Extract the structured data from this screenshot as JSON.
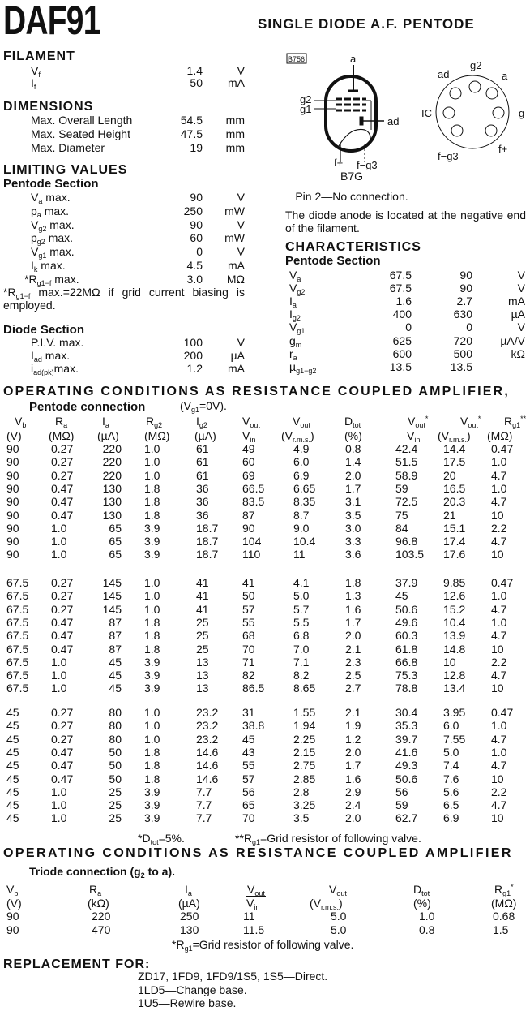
{
  "header": {
    "tube": "DAF91",
    "description": "SINGLE DIODE A.F. PENTODE"
  },
  "filament": {
    "title": "FILAMENT",
    "rows": [
      {
        "sym": "V",
        "sub": "f",
        "value": "1.4",
        "unit": "V"
      },
      {
        "sym": "I",
        "sub": "f",
        "value": "50",
        "unit": "mA"
      }
    ]
  },
  "dimensions": {
    "title": "DIMENSIONS",
    "rows": [
      {
        "text": "Max. Overall Length",
        "value": "54.5",
        "unit": "mm"
      },
      {
        "text": "Max. Seated Height",
        "value": "47.5",
        "unit": "mm"
      },
      {
        "text": "Max. Diameter",
        "value": "19",
        "unit": "mm"
      }
    ]
  },
  "limiting": {
    "title": "LIMITING VALUES",
    "pentode_title": "Pentode Section",
    "pentode_rows": [
      {
        "sym": "V",
        "sub": "a",
        "text": " max.",
        "value": "90",
        "unit": "V"
      },
      {
        "sym": "p",
        "sub": "a",
        "text": " max.",
        "value": "250",
        "unit": "mW"
      },
      {
        "sym": "V",
        "sub": "g2",
        "text": " max.",
        "value": "90",
        "unit": "V"
      },
      {
        "sym": "p",
        "sub": "g2",
        "text": " max.",
        "value": "60",
        "unit": "mW"
      },
      {
        "sym": "V",
        "sub": "g1",
        "text": " max.",
        "value": "0",
        "unit": "V"
      },
      {
        "sym": "I",
        "sub": "k",
        "text": " max.",
        "value": "4.5",
        "unit": "mA"
      },
      {
        "prefix": "*",
        "sym": "R",
        "sub": "g1−f",
        "text": " max.",
        "value": "3.0",
        "unit": "MΩ"
      }
    ],
    "footnote": {
      "prefix": "*R",
      "sub": "g1−f",
      "text": " max.=22MΩ if grid current biasing is employed."
    },
    "diode_title": "Diode Section",
    "diode_rows": [
      {
        "text": "P.I.V. max.",
        "value": "100",
        "unit": "V"
      },
      {
        "sym": "I",
        "sub": "ad",
        "text": " max.",
        "value": "200",
        "unit": "µA"
      },
      {
        "sym": "i",
        "sub": "ad(pk)",
        "text": "max.",
        "value": "1.2",
        "unit": "mA"
      }
    ]
  },
  "diagram": {
    "ref": "B756",
    "tube_labels": {
      "anode": "a",
      "g2": "g2",
      "g1": "g1",
      "diode_anode": "ad",
      "f_plus": "f+",
      "f_minus": "f−g3"
    },
    "socket_labels": {
      "top": "g2",
      "top_left": "ad",
      "top_right": "a",
      "left": "IC",
      "right": "g",
      "bottom_left": "f−g3",
      "bottom_right": "f+"
    },
    "base": "B7G",
    "pin_note": "Pin 2—No connection.",
    "diode_note": "The diode anode is located at the negative end of the filament."
  },
  "characteristics": {
    "title": "CHARACTERISTICS",
    "section": "Pentode Section",
    "rows": [
      {
        "sym": "V",
        "sub": "a",
        "v1": "67.5",
        "v2": "90",
        "unit": "V"
      },
      {
        "sym": "V",
        "sub": "g2",
        "v1": "67.5",
        "v2": "90",
        "unit": "V"
      },
      {
        "sym": "I",
        "sub": "a",
        "v1": "1.6",
        "v2": "2.7",
        "unit": "mA"
      },
      {
        "sym": "I",
        "sub": "g2",
        "v1": "400",
        "v2": "630",
        "unit": "µA"
      },
      {
        "sym": "V",
        "sub": "g1",
        "v1": "0",
        "v2": "0",
        "unit": "V"
      },
      {
        "sym": "g",
        "sub": "m",
        "v1": "625",
        "v2": "720",
        "unit": "µA/V"
      },
      {
        "sym": "r",
        "sub": "a",
        "v1": "600",
        "v2": "500",
        "unit": "kΩ"
      },
      {
        "sym": "µ",
        "sub": "g1−g2",
        "v1": "13.5",
        "v2": "13.5",
        "unit": ""
      }
    ]
  },
  "pentode_table": {
    "title": "OPERATING CONDITIONS AS RESISTANCE COUPLED AMPLIFIER,",
    "subtitle": "Pentode connection",
    "condition": {
      "sym": "(V",
      "sub": "g1",
      "text": "=0V)."
    },
    "headers": [
      {
        "sym": "V",
        "sub": "b",
        "unit": "(V)"
      },
      {
        "sym": "R",
        "sub": "a",
        "unit": "(MΩ)"
      },
      {
        "sym": "I",
        "sub": "a",
        "unit": "(µA)"
      },
      {
        "sym": "R",
        "sub": "g2",
        "unit": "(MΩ)"
      },
      {
        "sym": "I",
        "sub": "g2",
        "unit": "(µA)"
      },
      {
        "sym": "V",
        "sub": "out",
        "den_sym": "V",
        "den_sub": "in"
      },
      {
        "sym": "V",
        "sub": "out",
        "unit": "(V",
        "unit_sub": "r.m.s.",
        "unit_end": ")"
      },
      {
        "sym": "D",
        "sub": "tot",
        "unit": "(%)"
      },
      {
        "sym": "V",
        "sub": "out",
        "sup": "*",
        "den_sym": "V",
        "den_sub": "in"
      },
      {
        "sym": "V",
        "sub": "out",
        "sup": "*",
        "unit": "(V",
        "unit_sub": "r.m.s.",
        "unit_end": ")"
      },
      {
        "sym": "R",
        "sub": "g1",
        "sup": "**",
        "unit": "(MΩ)"
      }
    ],
    "groups": [
      [
        [
          "90",
          "0.27",
          "220",
          "1.0",
          "61",
          "49",
          "4.9",
          "0.8",
          "42.4",
          "14.4",
          "0.47"
        ],
        [
          "90",
          "0.27",
          "220",
          "1.0",
          "61",
          "60",
          "6.0",
          "1.4",
          "51.5",
          "17.5",
          "1.0"
        ],
        [
          "90",
          "0.27",
          "220",
          "1.0",
          "61",
          "69",
          "6.9",
          "2.0",
          "58.9",
          "20",
          "4.7"
        ],
        [
          "90",
          "0.47",
          "130",
          "1.8",
          "36",
          "66.5",
          "6.65",
          "1.7",
          "59",
          "16.5",
          "1.0"
        ],
        [
          "90",
          "0.47",
          "130",
          "1.8",
          "36",
          "83.5",
          "8.35",
          "3.1",
          "72.5",
          "20.3",
          "4.7"
        ],
        [
          "90",
          "0.47",
          "130",
          "1.8",
          "36",
          "87",
          "8.7",
          "3.5",
          "75",
          "21",
          "10"
        ],
        [
          "90",
          "1.0",
          "65",
          "3.9",
          "18.7",
          "90",
          "9.0",
          "3.0",
          "84",
          "15.1",
          "2.2"
        ],
        [
          "90",
          "1.0",
          "65",
          "3.9",
          "18.7",
          "104",
          "10.4",
          "3.3",
          "96.8",
          "17.4",
          "4.7"
        ],
        [
          "90",
          "1.0",
          "65",
          "3.9",
          "18.7",
          "110",
          "11",
          "3.6",
          "103.5",
          "17.6",
          "10"
        ]
      ],
      [
        [
          "67.5",
          "0.27",
          "145",
          "1.0",
          "41",
          "41",
          "4.1",
          "1.8",
          "37.9",
          "9.85",
          "0.47"
        ],
        [
          "67.5",
          "0.27",
          "145",
          "1.0",
          "41",
          "50",
          "5.0",
          "1.3",
          "45",
          "12.6",
          "1.0"
        ],
        [
          "67.5",
          "0.27",
          "145",
          "1.0",
          "41",
          "57",
          "5.7",
          "1.6",
          "50.6",
          "15.2",
          "4.7"
        ],
        [
          "67.5",
          "0.47",
          "87",
          "1.8",
          "25",
          "55",
          "5.5",
          "1.7",
          "49.6",
          "10.4",
          "1.0"
        ],
        [
          "67.5",
          "0.47",
          "87",
          "1.8",
          "25",
          "68",
          "6.8",
          "2.0",
          "60.3",
          "13.9",
          "4.7"
        ],
        [
          "67.5",
          "0.47",
          "87",
          "1.8",
          "25",
          "70",
          "7.0",
          "2.1",
          "61.8",
          "14.8",
          "10"
        ],
        [
          "67.5",
          "1.0",
          "45",
          "3.9",
          "13",
          "71",
          "7.1",
          "2.3",
          "66.8",
          "10",
          "2.2"
        ],
        [
          "67.5",
          "1.0",
          "45",
          "3.9",
          "13",
          "82",
          "8.2",
          "2.5",
          "75.3",
          "12.8",
          "4.7"
        ],
        [
          "67.5",
          "1.0",
          "45",
          "3.9",
          "13",
          "86.5",
          "8.65",
          "2.7",
          "78.8",
          "13.4",
          "10"
        ]
      ],
      [
        [
          "45",
          "0.27",
          "80",
          "1.0",
          "23.2",
          "31",
          "1.55",
          "2.1",
          "30.4",
          "3.95",
          "0.47"
        ],
        [
          "45",
          "0.27",
          "80",
          "1.0",
          "23.2",
          "38.8",
          "1.94",
          "1.9",
          "35.3",
          "6.0",
          "1.0"
        ],
        [
          "45",
          "0.27",
          "80",
          "1.0",
          "23.2",
          "45",
          "2.25",
          "1.2",
          "39.7",
          "7.55",
          "4.7"
        ],
        [
          "45",
          "0.47",
          "50",
          "1.8",
          "14.6",
          "43",
          "2.15",
          "2.0",
          "41.6",
          "5.0",
          "1.0"
        ],
        [
          "45",
          "0.47",
          "50",
          "1.8",
          "14.6",
          "55",
          "2.75",
          "1.7",
          "49.3",
          "7.4",
          "4.7"
        ],
        [
          "45",
          "0.47",
          "50",
          "1.8",
          "14.6",
          "57",
          "2.85",
          "1.6",
          "50.6",
          "7.6",
          "10"
        ],
        [
          "45",
          "1.0",
          "25",
          "3.9",
          "7.7",
          "56",
          "2.8",
          "2.9",
          "56",
          "5.6",
          "2.2"
        ],
        [
          "45",
          "1.0",
          "25",
          "3.9",
          "7.7",
          "65",
          "3.25",
          "2.4",
          "59",
          "6.5",
          "4.7"
        ],
        [
          "45",
          "1.0",
          "25",
          "3.9",
          "7.7",
          "70",
          "3.5",
          "2.0",
          "62.7",
          "6.9",
          "10"
        ]
      ]
    ],
    "footnote1": {
      "prefix": "*D",
      "sub": "tot",
      "text": "=5%."
    },
    "footnote2": {
      "prefix": "**R",
      "sub": "g1",
      "text": "=Grid resistor of following valve."
    }
  },
  "triode_table": {
    "title": "OPERATING CONDITIONS AS RESISTANCE COUPLED AMPLIFIER",
    "subtitle": {
      "prefix": "Triode connection (g",
      "sub": "2",
      "text": " to a)."
    },
    "headers": [
      {
        "sym": "V",
        "sub": "b",
        "unit": "(V)"
      },
      {
        "sym": "R",
        "sub": "a",
        "unit": "(kΩ)"
      },
      {
        "sym": "I",
        "sub": "a",
        "unit": "(µA)"
      },
      {
        "sym": "V",
        "sub": "out",
        "den_sym": "V",
        "den_sub": "in"
      },
      {
        "sym": "V",
        "sub": "out",
        "unit": "(V",
        "unit_sub": "r.m.s.",
        "unit_end": ")"
      },
      {
        "sym": "D",
        "sub": "tot",
        "unit": "(%)"
      },
      {
        "sym": "R",
        "sub": "g1",
        "sup": "*",
        "unit": "(MΩ)"
      }
    ],
    "rows": [
      [
        "90",
        "220",
        "250",
        "11",
        "5.0",
        "1.0",
        "0.68"
      ],
      [
        "90",
        "470",
        "130",
        "11.5",
        "5.0",
        "0.8",
        "1.5"
      ]
    ],
    "footnote": {
      "prefix": "*R",
      "sub": "g1",
      "text": "=Grid resistor of following valve."
    }
  },
  "replacement": {
    "title": "REPLACEMENT FOR:",
    "lines": [
      "ZD17, 1FD9, 1FD9/1S5, 1S5—Direct.",
      "1LD5—Change base.",
      "1U5—Rewire base."
    ]
  }
}
